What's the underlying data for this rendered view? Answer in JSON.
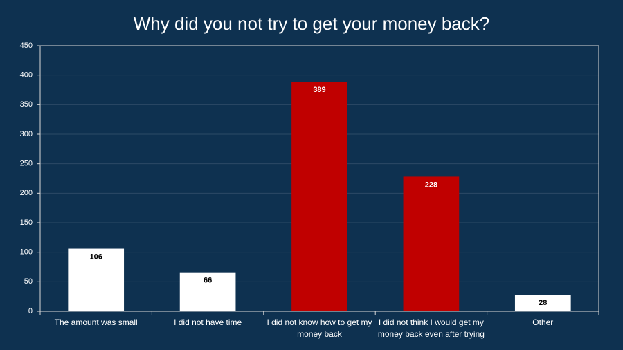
{
  "chart_data": {
    "type": "bar",
    "title": "Why did you not try to get your money back?",
    "categories": [
      "The amount was small",
      "I did not have time",
      "I did not know how to get my money back",
      "I did not think I would get my money back even after trying",
      "Other"
    ],
    "values": [
      106,
      66,
      389,
      228,
      28
    ],
    "colors": [
      "#ffffff",
      "#ffffff",
      "#c00000",
      "#c00000",
      "#ffffff"
    ],
    "label_colors": [
      "#000000",
      "#000000",
      "#ffffff",
      "#ffffff",
      "#000000"
    ],
    "ylim": [
      0,
      450
    ],
    "yticks": [
      0,
      50,
      100,
      150,
      200,
      250,
      300,
      350,
      400,
      450
    ],
    "grid": true
  }
}
